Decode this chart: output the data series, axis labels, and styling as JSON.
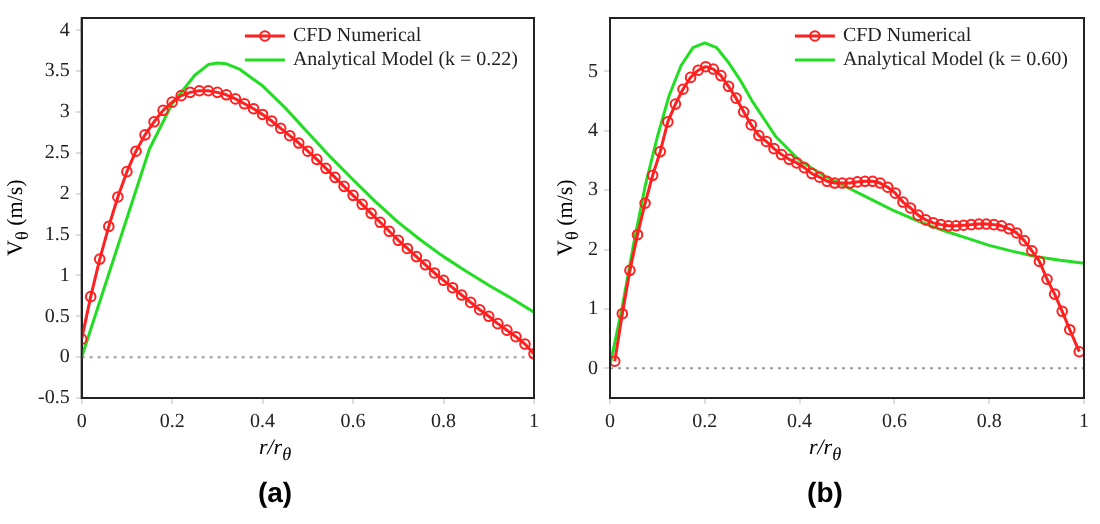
{
  "chart_data": [
    {
      "type": "line",
      "title": "(a)",
      "xlabel": "r/r$_{θ}$",
      "ylabel": "V$_{θ}$ (m/s)",
      "xlim": [
        0,
        1
      ],
      "xticks": [
        0,
        0.2,
        0.4,
        0.6,
        0.8,
        1
      ],
      "ylim": [
        -0.5,
        4.15
      ],
      "yticks": [
        -0.5,
        0,
        0.5,
        1,
        1.5,
        2,
        2.5,
        3,
        3.5,
        4
      ],
      "grid": false,
      "legend": "top right",
      "line_style": "solid",
      "ref_lines": [
        {
          "axis": "y",
          "value": 0,
          "color": "#999999",
          "line_style": "dotted"
        }
      ],
      "series": [
        {
          "name": "CFD Numerical",
          "color": "#ff2020",
          "marker": "circle",
          "x": [
            0,
            0.02,
            0.04,
            0.06,
            0.08,
            0.1,
            0.12,
            0.14,
            0.16,
            0.18,
            0.2,
            0.22,
            0.24,
            0.26,
            0.28,
            0.3,
            0.32,
            0.34,
            0.36,
            0.38,
            0.4,
            0.42,
            0.44,
            0.46,
            0.48,
            0.5,
            0.52,
            0.54,
            0.56,
            0.58,
            0.6,
            0.62,
            0.64,
            0.66,
            0.68,
            0.7,
            0.72,
            0.74,
            0.76,
            0.78,
            0.8,
            0.82,
            0.84,
            0.86,
            0.88,
            0.9,
            0.92,
            0.94,
            0.96,
            0.98,
            1
          ],
          "values": [
            0.22,
            0.74,
            1.2,
            1.6,
            1.96,
            2.27,
            2.52,
            2.72,
            2.88,
            3.02,
            3.12,
            3.2,
            3.24,
            3.26,
            3.26,
            3.24,
            3.21,
            3.16,
            3.1,
            3.04,
            2.97,
            2.89,
            2.8,
            2.71,
            2.62,
            2.52,
            2.42,
            2.31,
            2.2,
            2.09,
            1.98,
            1.87,
            1.76,
            1.65,
            1.54,
            1.43,
            1.33,
            1.23,
            1.13,
            1.03,
            0.94,
            0.85,
            0.76,
            0.67,
            0.58,
            0.5,
            0.41,
            0.33,
            0.25,
            0.16,
            0.04
          ]
        },
        {
          "name": "Analytical Model (k = 0.22)",
          "color": "#22dd22",
          "marker": "none",
          "x": [
            0,
            0.05,
            0.1,
            0.15,
            0.2,
            0.25,
            0.28,
            0.3,
            0.32,
            0.35,
            0.4,
            0.45,
            0.5,
            0.55,
            0.6,
            0.65,
            0.7,
            0.75,
            0.8,
            0.85,
            0.9,
            0.95,
            1
          ],
          "values": [
            0,
            0.85,
            1.7,
            2.55,
            3.1,
            3.45,
            3.58,
            3.6,
            3.59,
            3.52,
            3.32,
            3.05,
            2.75,
            2.45,
            2.17,
            1.9,
            1.65,
            1.43,
            1.23,
            1.05,
            0.88,
            0.72,
            0.55
          ]
        }
      ]
    },
    {
      "type": "line",
      "title": "(b)",
      "xlabel": "r/r$_{θ}$",
      "ylabel": "V$_{θ}$ (m/s)",
      "xlim": [
        0,
        1
      ],
      "xticks": [
        0,
        0.2,
        0.4,
        0.6,
        0.8,
        1
      ],
      "ylim": [
        -0.5,
        5.9
      ],
      "yticks": [
        0,
        1,
        2,
        3,
        4,
        5
      ],
      "grid": false,
      "legend": "top right",
      "line_style": "solid",
      "ref_lines": [
        {
          "axis": "y",
          "value": 0,
          "color": "#999999",
          "line_style": "dotted"
        }
      ],
      "series": [
        {
          "name": "CFD Numerical",
          "color": "#ff2020",
          "marker": "circle",
          "x": [
            0.01,
            0.026,
            0.042,
            0.058,
            0.074,
            0.09,
            0.106,
            0.122,
            0.138,
            0.154,
            0.17,
            0.186,
            0.202,
            0.218,
            0.234,
            0.25,
            0.266,
            0.282,
            0.298,
            0.314,
            0.33,
            0.346,
            0.362,
            0.378,
            0.394,
            0.41,
            0.426,
            0.442,
            0.458,
            0.474,
            0.49,
            0.506,
            0.522,
            0.538,
            0.554,
            0.57,
            0.586,
            0.602,
            0.618,
            0.634,
            0.65,
            0.666,
            0.682,
            0.698,
            0.714,
            0.73,
            0.746,
            0.762,
            0.778,
            0.794,
            0.81,
            0.826,
            0.842,
            0.858,
            0.874,
            0.89,
            0.906,
            0.922,
            0.938,
            0.954,
            0.97,
            0.99
          ],
          "values": [
            0.12,
            0.92,
            1.65,
            2.25,
            2.78,
            3.25,
            3.65,
            4.15,
            4.45,
            4.7,
            4.9,
            5.02,
            5.08,
            5.04,
            4.93,
            4.75,
            4.55,
            4.32,
            4.1,
            3.92,
            3.82,
            3.7,
            3.6,
            3.52,
            3.46,
            3.38,
            3.28,
            3.22,
            3.15,
            3.12,
            3.12,
            3.12,
            3.14,
            3.15,
            3.15,
            3.12,
            3.05,
            2.95,
            2.8,
            2.7,
            2.58,
            2.5,
            2.45,
            2.42,
            2.4,
            2.4,
            2.41,
            2.42,
            2.43,
            2.43,
            2.42,
            2.4,
            2.35,
            2.28,
            2.15,
            1.98,
            1.8,
            1.5,
            1.25,
            0.96,
            0.65,
            0.28
          ]
        },
        {
          "name": "Analytical Model (k = 0.60)",
          "color": "#22dd22",
          "marker": "none",
          "x": [
            0,
            0.025,
            0.05,
            0.075,
            0.1,
            0.125,
            0.15,
            0.175,
            0.2,
            0.225,
            0.25,
            0.275,
            0.3,
            0.35,
            0.4,
            0.45,
            0.5,
            0.55,
            0.6,
            0.65,
            0.7,
            0.75,
            0.8,
            0.85,
            0.9,
            0.95,
            1
          ],
          "values": [
            0.05,
            1.0,
            2.1,
            3.1,
            3.9,
            4.6,
            5.1,
            5.4,
            5.48,
            5.4,
            5.15,
            4.85,
            4.5,
            3.9,
            3.5,
            3.25,
            3.05,
            2.85,
            2.65,
            2.48,
            2.33,
            2.2,
            2.07,
            1.97,
            1.88,
            1.82,
            1.77
          ]
        }
      ]
    }
  ]
}
